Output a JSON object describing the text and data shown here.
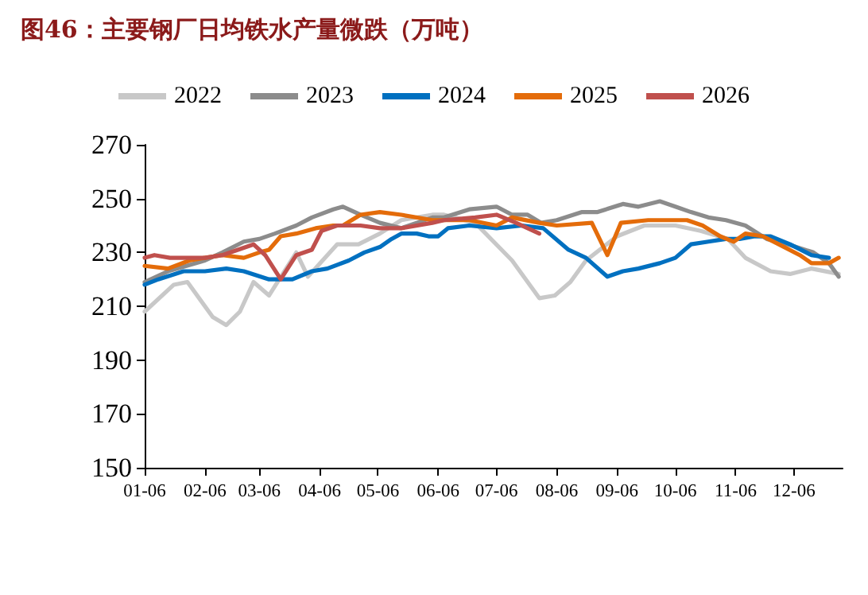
{
  "chart_data": {
    "type": "line",
    "title": "图46：主要钢厂日均铁水产量微跌（万吨）",
    "legend": "top",
    "grid": false,
    "marker": "none",
    "line_style": "solid",
    "xlim": [
      "--01-06",
      "--12-31"
    ],
    "xticks": [
      {
        "value": "--01-06",
        "label": "01-06"
      },
      {
        "value": "--02-06",
        "label": "02-06"
      },
      {
        "value": "--03-06",
        "label": "03-06"
      },
      {
        "value": "--04-06",
        "label": "04-06"
      },
      {
        "value": "--05-06",
        "label": "05-06"
      },
      {
        "value": "--06-06",
        "label": "06-06"
      },
      {
        "value": "--07-06",
        "label": "07-06"
      },
      {
        "value": "--08-06",
        "label": "08-06"
      },
      {
        "value": "--09-06",
        "label": "09-06"
      },
      {
        "value": "--10-06",
        "label": "10-06"
      },
      {
        "value": "--11-06",
        "label": "11-06"
      },
      {
        "value": "--12-06",
        "label": "12-06"
      }
    ],
    "ylim": [
      150,
      270
    ],
    "yticks": [
      150,
      170,
      190,
      210,
      230,
      250,
      270
    ],
    "series": [
      {
        "name": "2022",
        "color": "#c8c8c8",
        "x": [
          "--01-06",
          "--01-21",
          "--01-28",
          "--02-10",
          "--02-17",
          "--02-24",
          "--03-03",
          "--03-11",
          "--03-25",
          "--03-31",
          "--04-15",
          "--04-26",
          "--05-07",
          "--05-18",
          "--06-03",
          "--06-09",
          "--06-25",
          "--07-14",
          "--07-28",
          "--08-05",
          "--08-13",
          "--08-21",
          "--09-06",
          "--09-20",
          "--10-06",
          "--10-19",
          "--11-02",
          "--11-11",
          "--11-24",
          "--12-04",
          "--12-15",
          "--12-29"
        ],
        "values": [
          208,
          218,
          219,
          206,
          203,
          208,
          219,
          214,
          230,
          221,
          233,
          233,
          237,
          242,
          244,
          244,
          241,
          227,
          213,
          214,
          219,
          227,
          236,
          240,
          240,
          238,
          235,
          228,
          223,
          222,
          224,
          222
        ]
      },
      {
        "name": "2023",
        "color": "#8c8c8c",
        "x": [
          "--01-06",
          "--01-18",
          "--02-06",
          "--02-15",
          "--02-26",
          "--03-06",
          "--03-14",
          "--03-25",
          "--04-02",
          "--04-13",
          "--04-18",
          "--04-27",
          "--05-07",
          "--05-18",
          "--06-03",
          "--06-09",
          "--06-22",
          "--07-06",
          "--07-14",
          "--07-22",
          "--07-29",
          "--08-06",
          "--08-19",
          "--08-27",
          "--09-09",
          "--09-17",
          "--09-28",
          "--10-06",
          "--10-14",
          "--10-23",
          "--11-01",
          "--11-11",
          "--11-22",
          "--12-03",
          "--12-16",
          "--12-24",
          "--12-29"
        ],
        "values": [
          219,
          223,
          227,
          230,
          234,
          235,
          237,
          240,
          243,
          246,
          247,
          244,
          241,
          239,
          243,
          243,
          246,
          247,
          244,
          244,
          241,
          242,
          245,
          245,
          248,
          247,
          249,
          247,
          245,
          243,
          242,
          240,
          235,
          233,
          230,
          226,
          221
        ]
      },
      {
        "name": "2024",
        "color": "#0070c0",
        "x": [
          "--01-06",
          "--01-13",
          "--01-26",
          "--02-06",
          "--02-17",
          "--02-26",
          "--03-11",
          "--03-23",
          "--04-02",
          "--04-10",
          "--04-21",
          "--04-29",
          "--05-07",
          "--05-13",
          "--05-18",
          "--05-26",
          "--06-01",
          "--06-06",
          "--06-11",
          "--06-22",
          "--07-06",
          "--07-19",
          "--07-30",
          "--08-12",
          "--08-21",
          "--09-01",
          "--09-09",
          "--09-17",
          "--09-28",
          "--10-06",
          "--10-14",
          "--10-23",
          "--11-01",
          "--11-08",
          "--11-16",
          "--11-24",
          "--12-04",
          "--12-15",
          "--12-24"
        ],
        "values": [
          218,
          220,
          223,
          223,
          224,
          223,
          220,
          220,
          223,
          224,
          227,
          230,
          232,
          235,
          237,
          237,
          236,
          236,
          239,
          240,
          239,
          240,
          239,
          231,
          228,
          221,
          223,
          224,
          226,
          228,
          233,
          234,
          235,
          235,
          236,
          236,
          233,
          229,
          228
        ]
      },
      {
        "name": "2025",
        "color": "#e46c0a",
        "x": [
          "--01-06",
          "--01-18",
          "--01-29",
          "--02-06",
          "--02-15",
          "--02-26",
          "--03-06",
          "--03-11",
          "--03-17",
          "--03-25",
          "--04-04",
          "--04-13",
          "--04-18",
          "--04-27",
          "--05-07",
          "--05-18",
          "--06-03",
          "--06-22",
          "--07-06",
          "--07-14",
          "--07-28",
          "--08-06",
          "--08-24",
          "--09-01",
          "--09-08",
          "--09-22",
          "--10-01",
          "--10-12",
          "--10-20",
          "--10-29",
          "--11-05",
          "--11-11",
          "--11-20",
          "--12-01",
          "--12-09",
          "--12-15",
          "--12-24",
          "--12-29"
        ],
        "values": [
          225,
          224,
          227,
          228,
          229,
          228,
          230,
          231,
          236,
          237,
          239,
          240,
          240,
          244,
          245,
          244,
          242,
          242,
          240,
          243,
          241,
          240,
          241,
          229,
          241,
          242,
          242,
          242,
          240,
          236,
          234,
          237,
          236,
          232,
          229,
          226,
          226,
          228
        ]
      },
      {
        "name": "2026",
        "color": "#c0504d",
        "x": [
          "--01-06",
          "--01-11",
          "--01-19",
          "--02-06",
          "--02-15",
          "--02-23",
          "--03-03",
          "--03-09",
          "--03-17",
          "--03-25",
          "--04-02",
          "--04-07",
          "--04-15",
          "--04-27",
          "--05-07",
          "--05-18",
          "--06-03",
          "--06-09",
          "--06-25",
          "--07-06",
          "--07-16",
          "--07-28"
        ],
        "values": [
          228,
          229,
          228,
          228,
          229,
          231,
          233,
          229,
          220,
          229,
          231,
          238,
          240,
          240,
          239,
          239,
          241,
          242,
          243,
          244,
          241,
          237
        ]
      }
    ]
  }
}
